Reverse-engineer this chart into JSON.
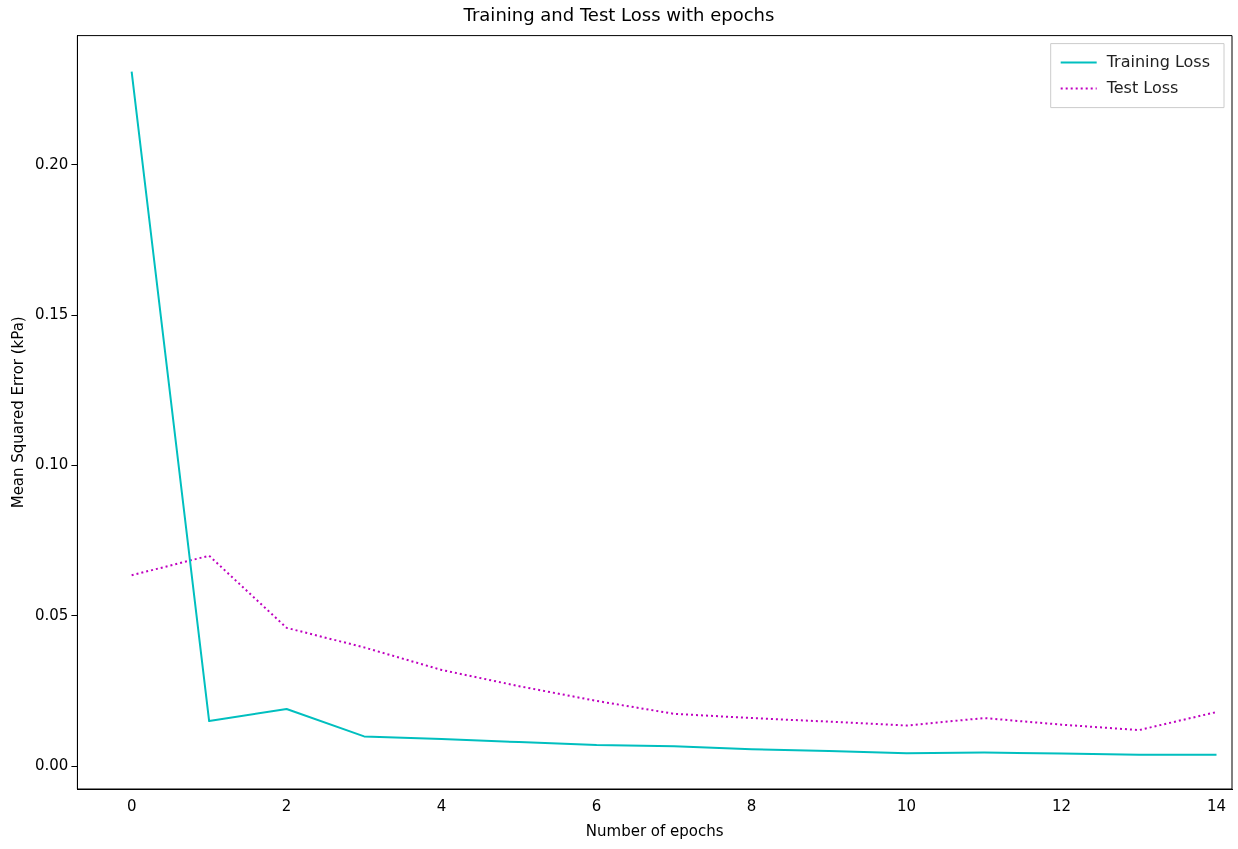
{
  "chart_data": {
    "type": "line",
    "title": "Training and Test Loss with epochs",
    "xlabel": "Number of epochs",
    "ylabel": "Mean Squared Error (kPa)",
    "x": [
      0,
      1,
      2,
      3,
      4,
      5,
      6,
      7,
      8,
      9,
      10,
      11,
      12,
      13,
      14
    ],
    "series": [
      {
        "name": "Training Loss",
        "color": "#00bfbf",
        "line_style": "solid",
        "values": [
          0.231,
          0.015,
          0.019,
          0.0099,
          0.009,
          0.008,
          0.007,
          0.0066,
          0.0056,
          0.005,
          0.0043,
          0.0045,
          0.0042,
          0.0038,
          0.0038
        ]
      },
      {
        "name": "Test Loss",
        "color": "#bf00bf",
        "line_style": "dotted",
        "values": [
          0.0635,
          0.07,
          0.046,
          0.0395,
          0.032,
          0.0266,
          0.0217,
          0.0174,
          0.016,
          0.0148,
          0.0135,
          0.016,
          0.0138,
          0.012,
          0.018
        ]
      }
    ],
    "xlim": [
      -0.7,
      14.2
    ],
    "xticks": [
      0,
      2,
      4,
      6,
      8,
      10,
      12,
      14
    ],
    "ylim": [
      -0.0076,
      0.243
    ],
    "yticks": [
      {
        "value": 0,
        "label": "0.00"
      },
      {
        "value": 0.05,
        "label": "0.05"
      },
      {
        "value": 0.1,
        "label": "0.10"
      },
      {
        "value": 0.15,
        "label": "0.15"
      },
      {
        "value": 0.2,
        "label": "0.20"
      }
    ],
    "grid": false,
    "legend": "top right",
    "marker": "none"
  }
}
